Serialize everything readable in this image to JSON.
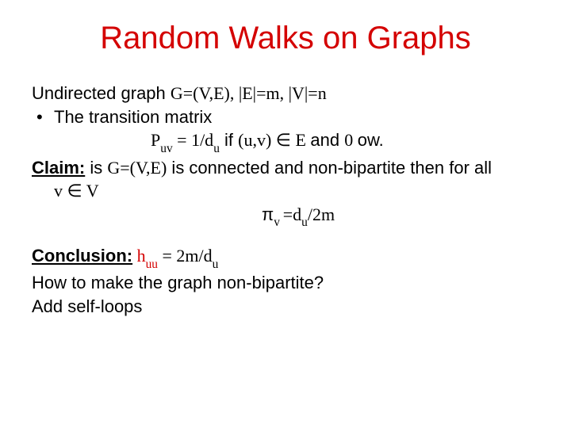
{
  "title": {
    "text": "Random Walks on Graphs",
    "color": "#d40000",
    "fontsize": 40
  },
  "body": {
    "color": "#000000",
    "fontsize": 22
  },
  "l1": {
    "a": "Undirected graph ",
    "b": "G=(V,E), |E|=m, |V|=n"
  },
  "l2": {
    "bullet": "•",
    "text": "The transition matrix"
  },
  "l3": {
    "P": "P",
    "uv": "uv",
    "eq": "  = ",
    "frac": "1/d",
    "u": "u",
    "if": " if ",
    "paren": "(u,v) ",
    "in": "∈",
    "E": " E ",
    "and": "and ",
    "zero": "0 ",
    "ow": "ow."
  },
  "l4": {
    "claim": "Claim:",
    "is": " is ",
    "ge": "G=(V,E)",
    "rest": " is connected and non-bipartite then for all"
  },
  "l5": {
    "v": "v ",
    "in": "∈",
    "V": " V"
  },
  "l6": {
    "pi": "π",
    "v": "v ",
    "eq": "=d",
    "u": "u",
    "frac": "/2m"
  },
  "l7": {
    "concl": "Conclusion:",
    "h": " h",
    "uu": "uu",
    "eq": "  = ",
    "val": "2m/d",
    "u": "u"
  },
  "l8": {
    "text": "How to make the graph non-bipartite?"
  },
  "l9": {
    "text": "Add self-loops"
  },
  "colors": {
    "red": "#d40000",
    "black": "#000000"
  }
}
